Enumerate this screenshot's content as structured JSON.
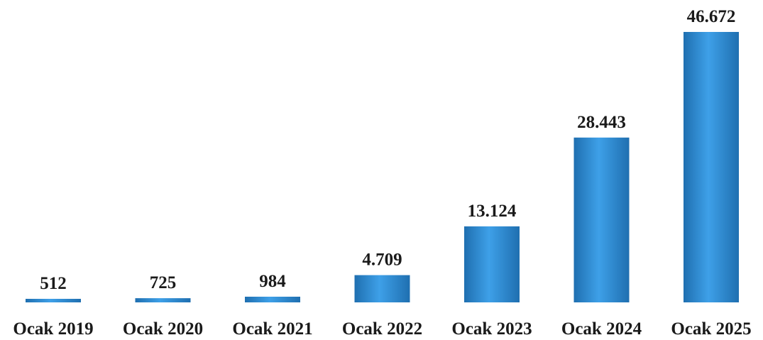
{
  "chart_data": {
    "type": "bar",
    "categories": [
      "Ocak 2019",
      "Ocak 2020",
      "Ocak 2021",
      "Ocak 2022",
      "Ocak 2023",
      "Ocak 2024",
      "Ocak 2025"
    ],
    "values": [
      512,
      725,
      984,
      4709,
      13124,
      28443,
      46672
    ],
    "data_labels": [
      "512",
      "725",
      "984",
      "4.709",
      "13.124",
      "28.443",
      "46.672"
    ],
    "title": "",
    "xlabel": "",
    "ylabel": "",
    "ylim": [
      0,
      46672
    ],
    "grid": false,
    "bar_color": "#2a86d0",
    "bar_color_light": "#3ea0e8",
    "bar_color_dark": "#1f6fb0"
  }
}
